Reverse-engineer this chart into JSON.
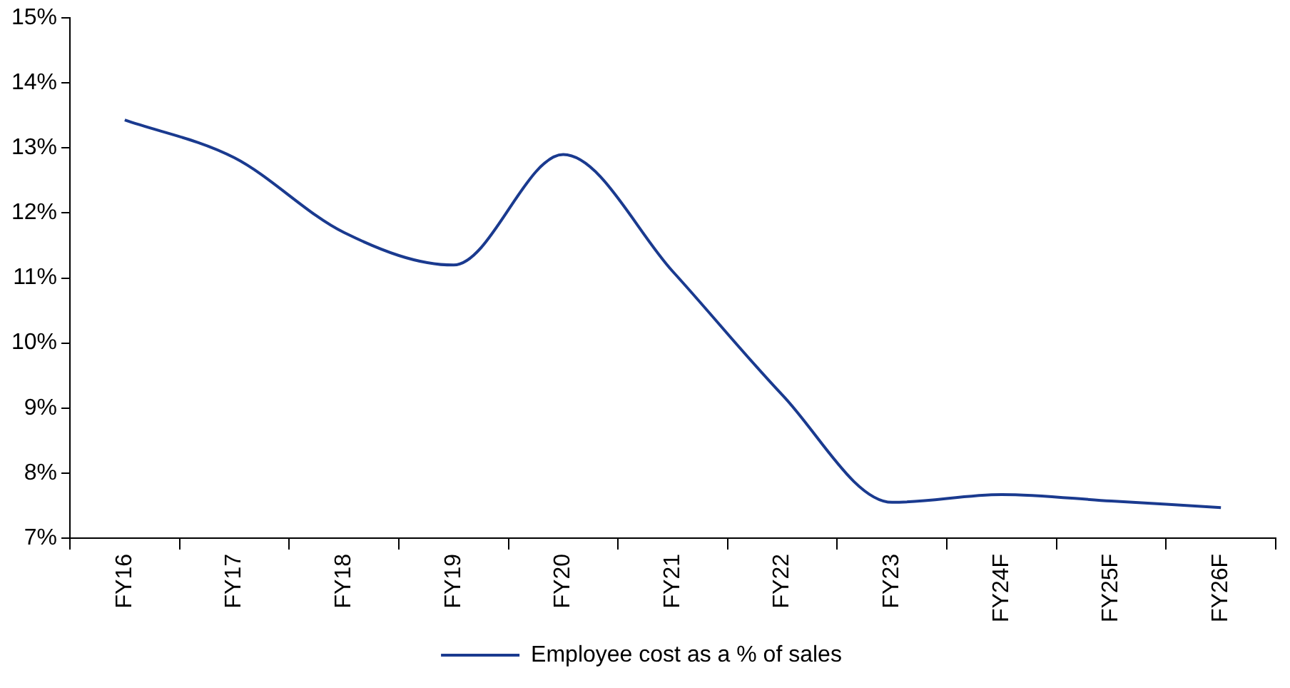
{
  "chart_data": {
    "type": "line",
    "categories": [
      "FY16",
      "FY17",
      "FY18",
      "FY19",
      "FY20",
      "FY21",
      "FY22",
      "FY23",
      "FY24F",
      "FY25F",
      "FY26F"
    ],
    "series": [
      {
        "name": "Employee cost as a % of sales",
        "color": "#1a3a8f",
        "values": [
          13.43,
          12.85,
          11.7,
          11.2,
          12.9,
          11.1,
          9.2,
          7.55,
          7.67,
          7.57,
          7.47
        ]
      }
    ],
    "ylim": [
      7,
      15
    ],
    "yticks": [
      {
        "value": 7,
        "label": "7%"
      },
      {
        "value": 8,
        "label": "8%"
      },
      {
        "value": 9,
        "label": "9%"
      },
      {
        "value": 10,
        "label": "10%"
      },
      {
        "value": 11,
        "label": "11%"
      },
      {
        "value": 12,
        "label": "12%"
      },
      {
        "value": 13,
        "label": "13%"
      },
      {
        "value": 14,
        "label": "14%"
      },
      {
        "value": 15,
        "label": "15%"
      }
    ],
    "grid": false,
    "legend": "bottom",
    "marker": "none",
    "line_style": "solid"
  }
}
